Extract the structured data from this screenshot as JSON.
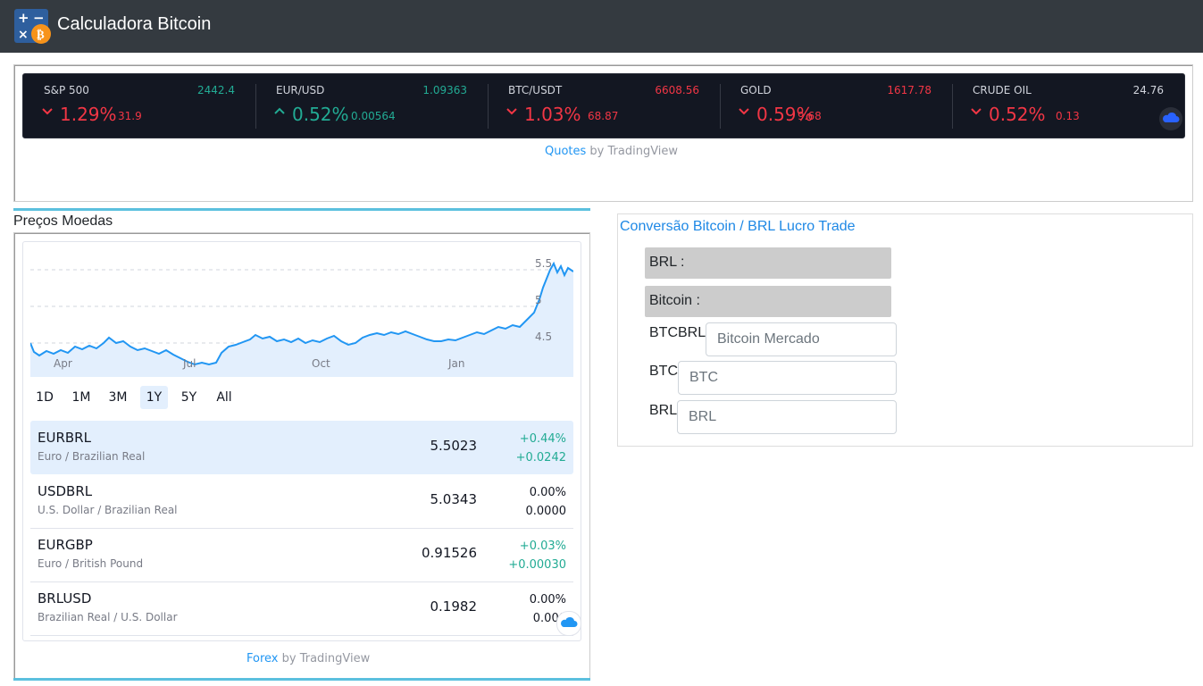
{
  "navbar": {
    "title": "Calculadora Bitcoin"
  },
  "ticker": {
    "items": [
      {
        "name": "S&P 500",
        "price": "2442.4",
        "price_color": "green",
        "direction": "down",
        "pct": "1.29%",
        "chg": "31.9"
      },
      {
        "name": "EUR/USD",
        "price": "1.09363",
        "price_color": "green",
        "direction": "up",
        "pct": "0.52%",
        "chg": "0.00564"
      },
      {
        "name": "BTC/USDT",
        "price": "6608.56",
        "price_color": "red",
        "direction": "down",
        "pct": "1.03%",
        "chg": "68.87"
      },
      {
        "name": "GOLD",
        "price": "1617.78",
        "price_color": "red",
        "direction": "down",
        "pct": "0.59%",
        "chg": "9.68"
      },
      {
        "name": "CRUDE OIL",
        "price": "24.76",
        "price_color": "white",
        "direction": "down",
        "pct": "0.52%",
        "chg": "0.13"
      }
    ],
    "attribution_link": "Quotes",
    "attribution_text": " by TradingView"
  },
  "prices_panel": {
    "title": "Preços Moedas",
    "chart": {
      "x_labels": [
        "Apr",
        "Jul",
        "Oct",
        "Jan"
      ],
      "y_labels": [
        "5.5",
        "5",
        "4.5"
      ]
    },
    "ranges": [
      "1D",
      "1M",
      "3M",
      "1Y",
      "5Y",
      "All"
    ],
    "active_range": "1Y",
    "rows": [
      {
        "symbol": "EURBRL",
        "desc": "Euro / Brazilian Real",
        "last": "5.5023",
        "pct": "+0.44%",
        "chg": "+0.0242",
        "tone": "gr"
      },
      {
        "symbol": "USDBRL",
        "desc": "U.S. Dollar / Brazilian Real",
        "last": "5.0343",
        "pct": "0.00%",
        "chg": "0.0000",
        "tone": "neu"
      },
      {
        "symbol": "EURGBP",
        "desc": "Euro / British Pound",
        "last": "0.91526",
        "pct": "+0.03%",
        "chg": "+0.00030",
        "tone": "gr"
      },
      {
        "symbol": "BRLUSD",
        "desc": "Brazilian Real / U.S. Dollar",
        "last": "0.1982",
        "pct": "0.00%",
        "chg": "0.000",
        "tone": "neu"
      }
    ],
    "attribution_link": "Forex",
    "attribution_text": " by TradingView"
  },
  "conversion": {
    "title": "Conversão Bitcoin / BRL Lucro Trade",
    "brl_label": "BRL :",
    "bitcoin_label": "Bitcoin :",
    "fields": [
      {
        "label": "BTCBRL",
        "placeholder": "Bitcoin Mercado"
      },
      {
        "label": "BTC",
        "placeholder": "BTC"
      },
      {
        "label": "BRL",
        "placeholder": "BRL"
      }
    ]
  },
  "colors": {
    "navbar": "#343a40",
    "accent_border": "#5bc0de",
    "ticker_bg": "#131722",
    "down": "#f23645",
    "up": "#22ab94",
    "link": "#1e88e5"
  }
}
